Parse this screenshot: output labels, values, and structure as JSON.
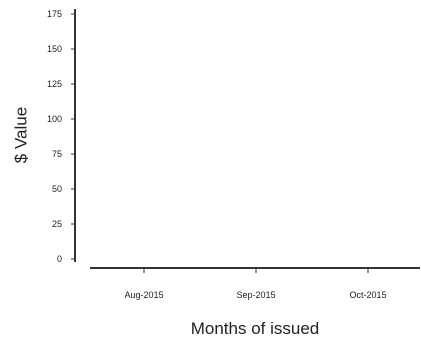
{
  "chart_data": {
    "type": "bar",
    "title": "",
    "xlabel": "Months of issued",
    "ylabel": "$ Value",
    "categories": [
      "Aug-2015",
      "Sep-2015",
      "Oct-2015"
    ],
    "series": [
      {
        "values": [
          0,
          0,
          0
        ]
      }
    ],
    "ylim": [
      0,
      175
    ],
    "yticks": [
      0,
      25,
      50,
      75,
      100,
      125,
      150,
      175
    ],
    "grid": false,
    "legend": "none",
    "colors": {
      "axis": "#333333",
      "text": "#222222",
      "background": "#ffffff"
    }
  }
}
